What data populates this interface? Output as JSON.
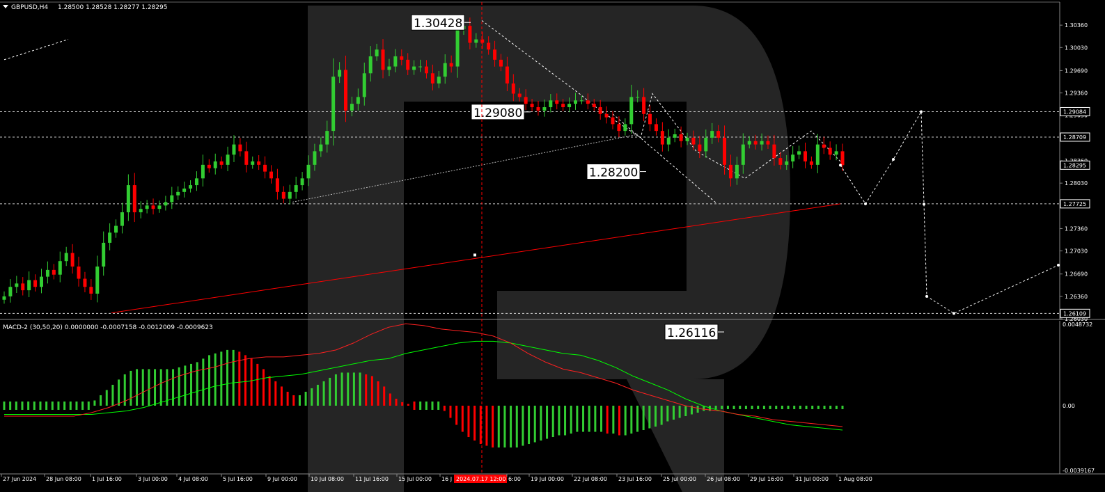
{
  "header": {
    "symbol_label": "GBPUSD,H4",
    "ohlc_label": "1.28500 1.28528 1.28277 1.28295"
  },
  "macd_header": {
    "label": "MACD-2 (30,50,20) 0.0000000 -0.0007158 -0.0012009 -0.0009623"
  },
  "colors": {
    "background": "#000000",
    "bull": "#32cd32",
    "bear": "#ff0000",
    "signal": "#00ff00",
    "macd_line": "#ff2020",
    "watermark": "#252525",
    "grid_level": "#cccccc",
    "forecast": "#ffffff"
  },
  "chart_data": [
    {
      "type": "candlestick",
      "symbol": "GBPUSD",
      "timeframe": "H4",
      "ylim": [
        1.2602,
        1.307
      ],
      "price_ticks": [
        "1.30360",
        "1.30030",
        "1.29690",
        "1.29360",
        "1.29030",
        "1.28700",
        "1.28360",
        "1.28030",
        "1.27700",
        "1.27360",
        "1.27030",
        "1.26690",
        "1.26360",
        "1.26030"
      ],
      "x_ticks": [
        "27 Jun 2024",
        "28 Jun 08:00",
        "1 Jul 16:00",
        "3 Jul 00:00",
        "4 Jul 08:00",
        "5 Jul 16:00",
        "9 Jul 00:00",
        "10 Jul 08:00",
        "11 Jul 16:00",
        "15 Jul 00:00",
        "16 J",
        "2024.07.17 12:00",
        "6:00",
        "19 Jul 00:00",
        "22 Jul 08:00",
        "23 Jul 16:00",
        "25 Jul 00:00",
        "26 Jul 08:00",
        "29 Jul 16:00",
        "31 Jul 00:00",
        "1 Aug 08:00"
      ],
      "close_path": [
        1.2636,
        1.265,
        1.2655,
        1.2645,
        1.266,
        1.265,
        1.2665,
        1.2675,
        1.2668,
        1.2688,
        1.27,
        1.268,
        1.2662,
        1.265,
        1.264,
        1.268,
        1.2715,
        1.273,
        1.274,
        1.276,
        1.28,
        1.276,
        1.2765,
        1.277,
        1.2765,
        1.277,
        1.2775,
        1.2785,
        1.279,
        1.2795,
        1.28,
        1.281,
        1.283,
        1.2825,
        1.2835,
        1.283,
        1.2845,
        1.286,
        1.285,
        1.283,
        1.2835,
        1.283,
        1.282,
        1.281,
        1.279,
        1.278,
        1.279,
        1.28,
        1.281,
        1.283,
        1.285,
        1.286,
        1.288,
        1.296,
        1.297,
        1.291,
        1.292,
        1.293,
        1.2965,
        1.299,
        1.3,
        1.297,
        1.2975,
        1.299,
        1.2985,
        1.297,
        1.2975,
        1.2975,
        1.2965,
        1.295,
        1.296,
        1.298,
        1.2975,
        1.303,
        1.3035,
        1.301,
        1.3015,
        1.301,
        1.3,
        1.2985,
        1.2975,
        1.295,
        1.2935,
        1.293,
        1.292,
        1.2915,
        1.291,
        1.2915,
        1.2925,
        1.292,
        1.2915,
        1.292,
        1.2925,
        1.2925,
        1.292,
        1.2915,
        1.2905,
        1.29,
        1.289,
        1.288,
        1.289,
        1.293,
        1.293,
        1.2905,
        1.289,
        1.288,
        1.286,
        1.287,
        1.2875,
        1.2865,
        1.287,
        1.286,
        1.285,
        1.287,
        1.288,
        1.287,
        1.283,
        1.281,
        1.283,
        1.286,
        1.2865,
        1.286,
        1.2865,
        1.286,
        1.284,
        1.283,
        1.2835,
        1.2845,
        1.285,
        1.2835,
        1.283,
        1.286,
        1.2855,
        1.2845,
        1.285,
        1.28295
      ],
      "horizontal_levels": [
        "1.29084",
        "1.28709",
        "1.27725",
        "1.26109"
      ],
      "live_price": "1.28295",
      "annotations": [
        "1.30428",
        "1.29080",
        "1.28200",
        "1.26116"
      ],
      "forecast_path": [
        1.28295,
        1.27725,
        1.2838,
        1.29084,
        1.2772,
        1.2636,
        1.26109,
        1.2682
      ],
      "trendline_red": [
        1.26116,
        1.27725
      ],
      "cursor_time": "2024.07.17 12:00"
    },
    {
      "type": "bar",
      "name": "MACD-2 (30,50,20)",
      "ylim": [
        -0.0039167,
        0.0048732
      ],
      "y_ticks": [
        "0.0048732",
        "0.00",
        "-0.0039167"
      ],
      "histogram": [
        0.0,
        0.0,
        0.0,
        0.0,
        0.0,
        0.0,
        0.0,
        0.0,
        0.0,
        0.0,
        0.0,
        0.0,
        0.0,
        0.0,
        0.0,
        0.0003,
        0.0006,
        0.0009,
        0.0012,
        0.0015,
        0.0018,
        0.002,
        0.0021,
        0.0021,
        0.0021,
        0.0021,
        0.0021,
        0.0021,
        0.0021,
        0.0022,
        0.0023,
        0.0024,
        0.0025,
        0.0027,
        0.0029,
        0.003,
        0.0031,
        0.0032,
        0.0032,
        0.0031,
        0.0029,
        0.0027,
        0.0024,
        0.0021,
        0.0017,
        0.0014,
        0.0011,
        0.0008,
        0.0006,
        0.0006,
        0.0008,
        0.001,
        0.0012,
        0.0014,
        0.0016,
        0.0018,
        0.0019,
        0.0019,
        0.0019,
        0.0019,
        0.0018,
        0.0017,
        0.0014,
        0.0011,
        0.0007,
        0.0004,
        0.0002,
        0.0001,
        0.0,
        0.0,
        0.0,
        0.0,
        0.0,
        -0.0003,
        -0.0007,
        -0.0011,
        -0.0015,
        -0.0018,
        -0.002,
        -0.0022,
        -0.0023,
        -0.0024,
        -0.0024,
        -0.0024,
        -0.0024,
        -0.0024,
        -0.0023,
        -0.0022,
        -0.0021,
        -0.002,
        -0.0019,
        -0.0018,
        -0.0017,
        -0.0017,
        -0.0016,
        -0.0015,
        -0.0015,
        -0.0015,
        -0.0015,
        -0.0015,
        -0.0016,
        -0.0016,
        -0.0017,
        -0.0017,
        -0.0016,
        -0.0015,
        -0.0014,
        -0.0013,
        -0.0012,
        -0.0011,
        -0.0009,
        -0.0008,
        -0.0007,
        -0.0006,
        -0.0005,
        -0.0004,
        -0.0003,
        -0.0003,
        -0.0002,
        -0.0002,
        -0.0002,
        -0.0002,
        -0.0002,
        -0.0002,
        -0.0002,
        -0.0002,
        -0.0002,
        -0.0002,
        -0.0002,
        -0.0002,
        -0.0002,
        -0.0002,
        -0.0002,
        -0.0002,
        -0.0002,
        -0.0002,
        -0.0002,
        -0.0002,
        -0.0002,
        -0.0002
      ],
      "signal_line": [
        -0.0005,
        -0.0005,
        -0.0005,
        -0.0005,
        -0.0005,
        -0.0005,
        -0.0004,
        -0.0003,
        -0.0001,
        0.0002,
        0.0005,
        0.0008,
        0.0011,
        0.0013,
        0.0014,
        0.0016,
        0.0017,
        0.0018,
        0.002,
        0.0022,
        0.0024,
        0.0026,
        0.0027,
        0.003,
        0.0032,
        0.0034,
        0.0036,
        0.0037,
        0.0037,
        0.0036,
        0.0034,
        0.0032,
        0.003,
        0.0029,
        0.0026,
        0.0022,
        0.0017,
        0.0013,
        0.0009,
        0.0004,
        0.0,
        -0.0003,
        -0.0005,
        -0.0007,
        -0.0009,
        -0.0011,
        -0.0012,
        -0.0013,
        -0.0014
      ],
      "macd_line": [
        -0.0006,
        -0.0006,
        -0.0006,
        -0.0006,
        -0.0006,
        -0.0004,
        -0.0001,
        0.0003,
        0.0008,
        0.0013,
        0.0017,
        0.002,
        0.0022,
        0.0025,
        0.0027,
        0.0028,
        0.0028,
        0.0029,
        0.003,
        0.0032,
        0.0036,
        0.0041,
        0.0045,
        0.0047,
        0.0046,
        0.0044,
        0.0043,
        0.0042,
        0.004,
        0.0036,
        0.003,
        0.0025,
        0.0021,
        0.0019,
        0.0016,
        0.0013,
        0.0009,
        0.0006,
        0.0003,
        0.0,
        -0.0002,
        -0.0003,
        -0.0005,
        -0.0006,
        -0.0008,
        -0.0009,
        -0.001,
        -0.0011,
        -0.0012
      ]
    }
  ]
}
